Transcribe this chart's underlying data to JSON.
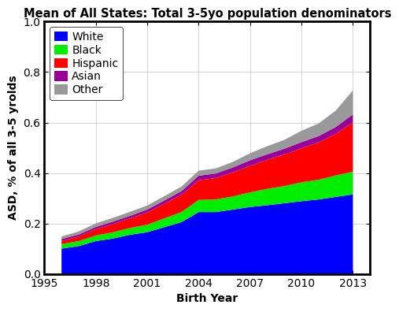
{
  "title": "Mean of All States: Total 3-5yo population denominators",
  "xlabel": "Birth Year",
  "ylabel": "ASD, % of all 3-5 yrolds",
  "years": [
    1996,
    1997,
    1998,
    1999,
    2000,
    2001,
    2002,
    2003,
    2004,
    2005,
    2006,
    2007,
    2008,
    2009,
    2010,
    2011,
    2012,
    2013
  ],
  "white": [
    0.1,
    0.11,
    0.13,
    0.14,
    0.155,
    0.165,
    0.185,
    0.205,
    0.245,
    0.245,
    0.255,
    0.265,
    0.272,
    0.28,
    0.288,
    0.295,
    0.305,
    0.315
  ],
  "black": [
    0.018,
    0.02,
    0.022,
    0.025,
    0.027,
    0.03,
    0.035,
    0.04,
    0.048,
    0.05,
    0.052,
    0.058,
    0.065,
    0.068,
    0.075,
    0.078,
    0.085,
    0.09
  ],
  "hispanic": [
    0.012,
    0.018,
    0.025,
    0.032,
    0.038,
    0.048,
    0.058,
    0.068,
    0.078,
    0.085,
    0.095,
    0.105,
    0.115,
    0.125,
    0.135,
    0.148,
    0.165,
    0.195
  ],
  "asian": [
    0.008,
    0.008,
    0.009,
    0.01,
    0.01,
    0.012,
    0.013,
    0.015,
    0.018,
    0.018,
    0.02,
    0.022,
    0.022,
    0.023,
    0.024,
    0.025,
    0.027,
    0.032
  ],
  "other": [
    0.01,
    0.012,
    0.014,
    0.015,
    0.016,
    0.016,
    0.017,
    0.018,
    0.02,
    0.02,
    0.022,
    0.028,
    0.032,
    0.035,
    0.045,
    0.05,
    0.065,
    0.095
  ],
  "colors": [
    "#0000ff",
    "#00ee00",
    "#ff0000",
    "#990099",
    "#999999"
  ],
  "labels": [
    "White",
    "Black",
    "Hispanic",
    "Asian",
    "Other"
  ],
  "ylim": [
    0,
    1
  ],
  "xlim": [
    1995,
    2014
  ],
  "xticks": [
    1995,
    1998,
    2001,
    2004,
    2007,
    2010,
    2013
  ],
  "yticks": [
    0,
    0.2,
    0.4,
    0.6,
    0.8,
    1.0
  ],
  "bg_color": "#ffffff",
  "title_fontsize": 10.5,
  "label_fontsize": 10,
  "tick_fontsize": 10,
  "legend_fontsize": 10
}
